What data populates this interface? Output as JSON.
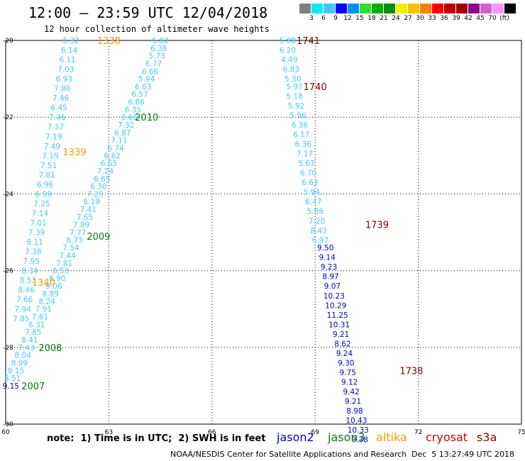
{
  "header": {
    "title": "12:00 – 23:59 UTC 12/04/2018",
    "subtitle": "12 hour collection of altimeter wave heights"
  },
  "colorbar": {
    "colors": [
      "#808080",
      "#00f0f0",
      "#40c8ff",
      "#0000ff",
      "#0090ff",
      "#30e030",
      "#00b000",
      "#009000",
      "#f0f000",
      "#ffc000",
      "#ff8000",
      "#ff0000",
      "#c00000",
      "#a00000",
      "#900090",
      "#d060d0",
      "#ff90ff",
      "#000000"
    ],
    "ticks": [
      "3",
      "6",
      "9",
      "12",
      "15",
      "18",
      "21",
      "24",
      "27",
      "30",
      "33",
      "36",
      "39",
      "42",
      "45",
      "70",
      "(ft)"
    ]
  },
  "footer": {
    "note": "note:  1) Time is in UTC;  2) SWH is in feet",
    "credit": "NOAA/NESDIS Center for Satellite Applications and Research",
    "timestamp": "Dec  5 13:27:49 UTC 2018"
  },
  "legend": [
    {
      "name": "jason2",
      "color": "#0000c8"
    },
    {
      "name": "jason3",
      "color": "#008000"
    },
    {
      "name": "altika",
      "color": "#ff9900"
    },
    {
      "name": "cryosat",
      "color": "#cc0000"
    },
    {
      "name": "s3a",
      "color": "#8b0000"
    }
  ],
  "chart_data": {
    "type": "scatter",
    "xlim": [
      60,
      75
    ],
    "ylim": [
      -30,
      -20
    ],
    "xticks": [
      "60",
      "63",
      "66",
      "69",
      "72",
      "75"
    ],
    "yticks": [
      "-20",
      "-22",
      "-24",
      "-26",
      "-28",
      "-30"
    ],
    "grid": true,
    "series": [
      {
        "name": "altika",
        "color": "#40c8ff",
        "points": [
          {
            "x": 61.9,
            "y": -20.0,
            "v": "6.32"
          },
          {
            "x": 61.85,
            "y": -20.25,
            "v": "6.14"
          },
          {
            "x": 61.8,
            "y": -20.5,
            "v": "6.11"
          },
          {
            "x": 61.75,
            "y": -20.75,
            "v": "7.03"
          },
          {
            "x": 61.7,
            "y": -21.0,
            "v": "6.93"
          },
          {
            "x": 61.65,
            "y": -21.25,
            "v": "7.80"
          },
          {
            "x": 61.6,
            "y": -21.5,
            "v": "7.46"
          },
          {
            "x": 61.55,
            "y": -21.75,
            "v": "6.45"
          },
          {
            "x": 61.5,
            "y": -22.0,
            "v": "7.46"
          },
          {
            "x": 61.45,
            "y": -22.25,
            "v": "7.37"
          },
          {
            "x": 61.4,
            "y": -22.5,
            "v": "7.19"
          },
          {
            "x": 61.35,
            "y": -22.75,
            "v": "7.49"
          },
          {
            "x": 61.3,
            "y": -23.0,
            "v": "7.19"
          },
          {
            "x": 61.25,
            "y": -23.25,
            "v": "7.51"
          },
          {
            "x": 61.2,
            "y": -23.5,
            "v": "7.81"
          },
          {
            "x": 61.15,
            "y": -23.75,
            "v": "6.96"
          },
          {
            "x": 61.1,
            "y": -24.0,
            "v": "6.99"
          },
          {
            "x": 61.05,
            "y": -24.25,
            "v": "7.25"
          },
          {
            "x": 61.0,
            "y": -24.5,
            "v": "7.14"
          },
          {
            "x": 60.95,
            "y": -24.75,
            "v": "7.01"
          },
          {
            "x": 60.9,
            "y": -25.0,
            "v": "7.39"
          },
          {
            "x": 60.85,
            "y": -25.25,
            "v": "8.11"
          },
          {
            "x": 60.8,
            "y": -25.5,
            "v": "7.38"
          },
          {
            "x": 60.75,
            "y": -25.75,
            "v": "7.95"
          },
          {
            "x": 60.7,
            "y": -26.0,
            "v": "8.34"
          },
          {
            "x": 60.65,
            "y": -26.25,
            "v": "8.53"
          },
          {
            "x": 60.6,
            "y": -26.5,
            "v": "8.46"
          },
          {
            "x": 60.55,
            "y": -26.75,
            "v": "7.66"
          },
          {
            "x": 60.5,
            "y": -27.0,
            "v": "7.94"
          },
          {
            "x": 60.45,
            "y": -27.25,
            "v": "7.85"
          },
          {
            "x": 64.5,
            "y": -20.0,
            "v": "5.82"
          },
          {
            "x": 64.45,
            "y": -20.2,
            "v": "6.38"
          },
          {
            "x": 64.4,
            "y": -20.4,
            "v": "5.73"
          },
          {
            "x": 64.3,
            "y": -20.6,
            "v": "6.77"
          },
          {
            "x": 64.2,
            "y": -20.8,
            "v": "6.66"
          },
          {
            "x": 64.1,
            "y": -21.0,
            "v": "5.94"
          },
          {
            "x": 64.0,
            "y": -21.2,
            "v": "6.03"
          },
          {
            "x": 63.9,
            "y": -21.4,
            "v": "6.57"
          },
          {
            "x": 63.8,
            "y": -21.6,
            "v": "6.86"
          },
          {
            "x": 63.7,
            "y": -21.8,
            "v": "6.35"
          },
          {
            "x": 63.6,
            "y": -22.0,
            "v": "6.66"
          },
          {
            "x": 63.5,
            "y": -22.2,
            "v": "7.32"
          },
          {
            "x": 63.4,
            "y": -22.4,
            "v": "6.87"
          },
          {
            "x": 63.3,
            "y": -22.6,
            "v": "7.11"
          },
          {
            "x": 63.2,
            "y": -22.8,
            "v": "6.74"
          },
          {
            "x": 63.1,
            "y": -23.0,
            "v": "6.62"
          },
          {
            "x": 63.0,
            "y": -23.2,
            "v": "6.65"
          },
          {
            "x": 62.9,
            "y": -23.4,
            "v": "7.24"
          },
          {
            "x": 62.8,
            "y": -23.6,
            "v": "6.65"
          },
          {
            "x": 62.7,
            "y": -23.8,
            "v": "6.30"
          },
          {
            "x": 62.6,
            "y": -24.0,
            "v": "7.25"
          },
          {
            "x": 62.5,
            "y": -24.2,
            "v": "6.19"
          },
          {
            "x": 62.4,
            "y": -24.4,
            "v": "7.41"
          },
          {
            "x": 62.3,
            "y": -24.6,
            "v": "7.65"
          },
          {
            "x": 62.2,
            "y": -24.8,
            "v": "7.89"
          },
          {
            "x": 62.1,
            "y": -25.0,
            "v": "7.77"
          },
          {
            "x": 62.0,
            "y": -25.2,
            "v": "8.73"
          },
          {
            "x": 61.9,
            "y": -25.4,
            "v": "7.54"
          },
          {
            "x": 61.8,
            "y": -25.6,
            "v": "7.44"
          },
          {
            "x": 61.7,
            "y": -25.8,
            "v": "7.81"
          },
          {
            "x": 61.6,
            "y": -26.0,
            "v": "8.53"
          },
          {
            "x": 61.5,
            "y": -26.2,
            "v": "8.90"
          },
          {
            "x": 61.4,
            "y": -26.4,
            "v": "9.06"
          },
          {
            "x": 61.3,
            "y": -26.6,
            "v": "8.89"
          },
          {
            "x": 61.2,
            "y": -26.8,
            "v": "8.24"
          },
          {
            "x": 61.1,
            "y": -27.0,
            "v": "7.91"
          },
          {
            "x": 61.0,
            "y": -27.2,
            "v": "7.61"
          },
          {
            "x": 60.9,
            "y": -27.4,
            "v": "8.31"
          },
          {
            "x": 60.8,
            "y": -27.6,
            "v": "7.85"
          },
          {
            "x": 60.7,
            "y": -27.8,
            "v": "8.41"
          },
          {
            "x": 60.6,
            "y": -28.0,
            "v": "7.43"
          },
          {
            "x": 60.5,
            "y": -28.2,
            "v": "8.04"
          },
          {
            "x": 60.4,
            "y": -28.4,
            "v": "8.99"
          },
          {
            "x": 60.3,
            "y": -28.6,
            "v": "8.15"
          },
          {
            "x": 60.2,
            "y": -28.8,
            "v": "8.51"
          },
          {
            "x": 68.2,
            "y": -20.0,
            "v": "5.88"
          },
          {
            "x": 68.2,
            "y": -20.25,
            "v": "6.20"
          },
          {
            "x": 68.25,
            "y": -20.5,
            "v": "4.49"
          },
          {
            "x": 68.3,
            "y": -20.75,
            "v": "6.83"
          },
          {
            "x": 68.35,
            "y": -21.0,
            "v": "5.30"
          },
          {
            "x": 68.4,
            "y": -21.2,
            "v": "5.97"
          },
          {
            "x": 68.4,
            "y": -21.45,
            "v": "5.18"
          },
          {
            "x": 68.45,
            "y": -21.7,
            "v": "5.92"
          },
          {
            "x": 68.5,
            "y": -21.95,
            "v": "5.96"
          },
          {
            "x": 68.55,
            "y": -22.2,
            "v": "6.36"
          },
          {
            "x": 68.6,
            "y": -22.45,
            "v": "6.17"
          },
          {
            "x": 68.65,
            "y": -22.7,
            "v": "6.36"
          },
          {
            "x": 68.7,
            "y": -22.95,
            "v": "7.17"
          },
          {
            "x": 68.75,
            "y": -23.2,
            "v": "5.67"
          },
          {
            "x": 68.8,
            "y": -23.45,
            "v": "6.70"
          },
          {
            "x": 68.85,
            "y": -23.7,
            "v": "6.63"
          },
          {
            "x": 68.9,
            "y": -23.95,
            "v": "5.94"
          },
          {
            "x": 68.95,
            "y": -24.2,
            "v": "6.47"
          },
          {
            "x": 69.0,
            "y": -24.45,
            "v": "5.88"
          },
          {
            "x": 69.05,
            "y": -24.7,
            "v": "7.20"
          },
          {
            "x": 69.1,
            "y": -24.95,
            "v": "8.43"
          },
          {
            "x": 69.15,
            "y": -25.2,
            "v": "6.97"
          }
        ]
      },
      {
        "name": "jason2",
        "color": "#0000c8",
        "points": [
          {
            "x": 60.15,
            "y": -29.0,
            "v": "9.15"
          },
          {
            "x": 69.3,
            "y": -25.4,
            "v": "9.50"
          },
          {
            "x": 69.35,
            "y": -25.65,
            "v": "9.14"
          },
          {
            "x": 69.4,
            "y": -25.9,
            "v": "9.23"
          },
          {
            "x": 69.45,
            "y": -26.15,
            "v": "8.97"
          },
          {
            "x": 69.5,
            "y": -26.4,
            "v": "9.07"
          },
          {
            "x": 69.55,
            "y": -26.65,
            "v": "10.23"
          },
          {
            "x": 69.6,
            "y": -26.9,
            "v": "10.29"
          },
          {
            "x": 69.65,
            "y": -27.15,
            "v": "11.25"
          },
          {
            "x": 69.7,
            "y": -27.4,
            "v": "10.31"
          },
          {
            "x": 69.75,
            "y": -27.65,
            "v": "9.21"
          },
          {
            "x": 69.8,
            "y": -27.9,
            "v": "8.62"
          },
          {
            "x": 69.85,
            "y": -28.15,
            "v": "9.24"
          },
          {
            "x": 69.9,
            "y": -28.4,
            "v": "9.30"
          },
          {
            "x": 69.95,
            "y": -28.65,
            "v": "9.75"
          },
          {
            "x": 70.0,
            "y": -28.9,
            "v": "9.12"
          },
          {
            "x": 70.05,
            "y": -29.15,
            "v": "9.42"
          },
          {
            "x": 70.1,
            "y": -29.4,
            "v": "9.21"
          },
          {
            "x": 70.15,
            "y": -29.65,
            "v": "8.98"
          },
          {
            "x": 70.2,
            "y": -29.9,
            "v": "10.43"
          },
          {
            "x": 70.25,
            "y": -30.15,
            "v": "10.33"
          },
          {
            "x": 70.3,
            "y": -30.4,
            "v": "9.38"
          }
        ]
      }
    ],
    "time_labels": [
      {
        "x": 63.0,
        "y": -20.0,
        "text": "1338",
        "color": "#ff9900"
      },
      {
        "x": 62.0,
        "y": -22.9,
        "text": "1339",
        "color": "#ff9900"
      },
      {
        "x": 61.1,
        "y": -26.3,
        "text": "1340",
        "color": "#ff9900"
      },
      {
        "x": 64.1,
        "y": -22.0,
        "text": "2010",
        "color": "#008000"
      },
      {
        "x": 62.7,
        "y": -25.1,
        "text": "2009",
        "color": "#008000"
      },
      {
        "x": 61.3,
        "y": -28.0,
        "text": "2008",
        "color": "#008000"
      },
      {
        "x": 60.8,
        "y": -29.0,
        "text": "2007",
        "color": "#008000"
      },
      {
        "x": 68.8,
        "y": -20.0,
        "text": "1741",
        "color": "#800000"
      },
      {
        "x": 69.0,
        "y": -21.2,
        "text": "1740",
        "color": "#800000"
      },
      {
        "x": 70.8,
        "y": -24.8,
        "text": "1739",
        "color": "#800000"
      },
      {
        "x": 71.8,
        "y": -28.6,
        "text": "1738",
        "color": "#800000"
      }
    ]
  }
}
